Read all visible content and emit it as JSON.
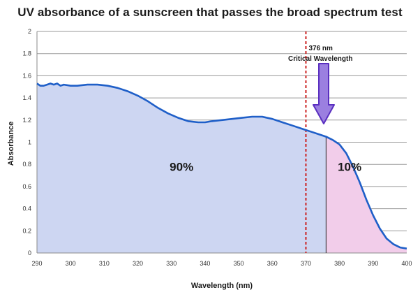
{
  "chart_data": {
    "type": "area",
    "title": "UV absorbance of a sunscreen that passes the broad spectrum test",
    "xlabel": "Wavelength (nm)",
    "ylabel": "Absorbance",
    "xlim": [
      290,
      400
    ],
    "ylim": [
      0,
      2
    ],
    "x_ticks": [
      290,
      300,
      310,
      320,
      330,
      340,
      350,
      360,
      370,
      380,
      390,
      400
    ],
    "y_ticks": [
      0,
      0.2,
      0.4,
      0.6,
      0.8,
      1,
      1.2,
      1.4,
      1.6,
      1.8,
      2
    ],
    "grid": "horizontal",
    "series": [
      {
        "x": [
          290,
          291,
          292,
          293,
          294,
          295,
          296,
          297,
          298,
          300,
          302,
          305,
          308,
          311,
          314,
          317,
          320,
          323,
          326,
          329,
          332,
          335,
          338,
          340,
          342,
          345,
          348,
          351,
          354,
          357,
          360,
          363,
          366,
          369,
          372,
          374,
          376,
          378,
          380,
          382,
          384,
          386,
          388,
          390,
          392,
          394,
          396,
          398,
          400
        ],
        "values": [
          1.53,
          1.51,
          1.51,
          1.52,
          1.53,
          1.52,
          1.53,
          1.51,
          1.52,
          1.51,
          1.51,
          1.52,
          1.52,
          1.51,
          1.49,
          1.46,
          1.42,
          1.37,
          1.31,
          1.26,
          1.22,
          1.19,
          1.18,
          1.18,
          1.19,
          1.2,
          1.21,
          1.22,
          1.23,
          1.23,
          1.21,
          1.18,
          1.15,
          1.12,
          1.09,
          1.07,
          1.05,
          1.02,
          0.98,
          0.9,
          0.78,
          0.64,
          0.48,
          0.34,
          0.22,
          0.13,
          0.08,
          0.05,
          0.04
        ]
      }
    ],
    "critical_wavelength": 376,
    "reference_line_x": 370,
    "annotations": {
      "critical_value": "376 nm",
      "critical_text": "Critical Wavelength",
      "left_percent": "90%",
      "right_percent": "10%"
    },
    "colors": {
      "line": "#1f5fc8",
      "fill_left": "#cdd6f2",
      "fill_right": "#f2cdea",
      "dashed": "#cc2222",
      "arrow_fill": "#9b7fe0",
      "arrow_stroke": "#5a2fc0",
      "grid": "#9a9a9a"
    }
  }
}
